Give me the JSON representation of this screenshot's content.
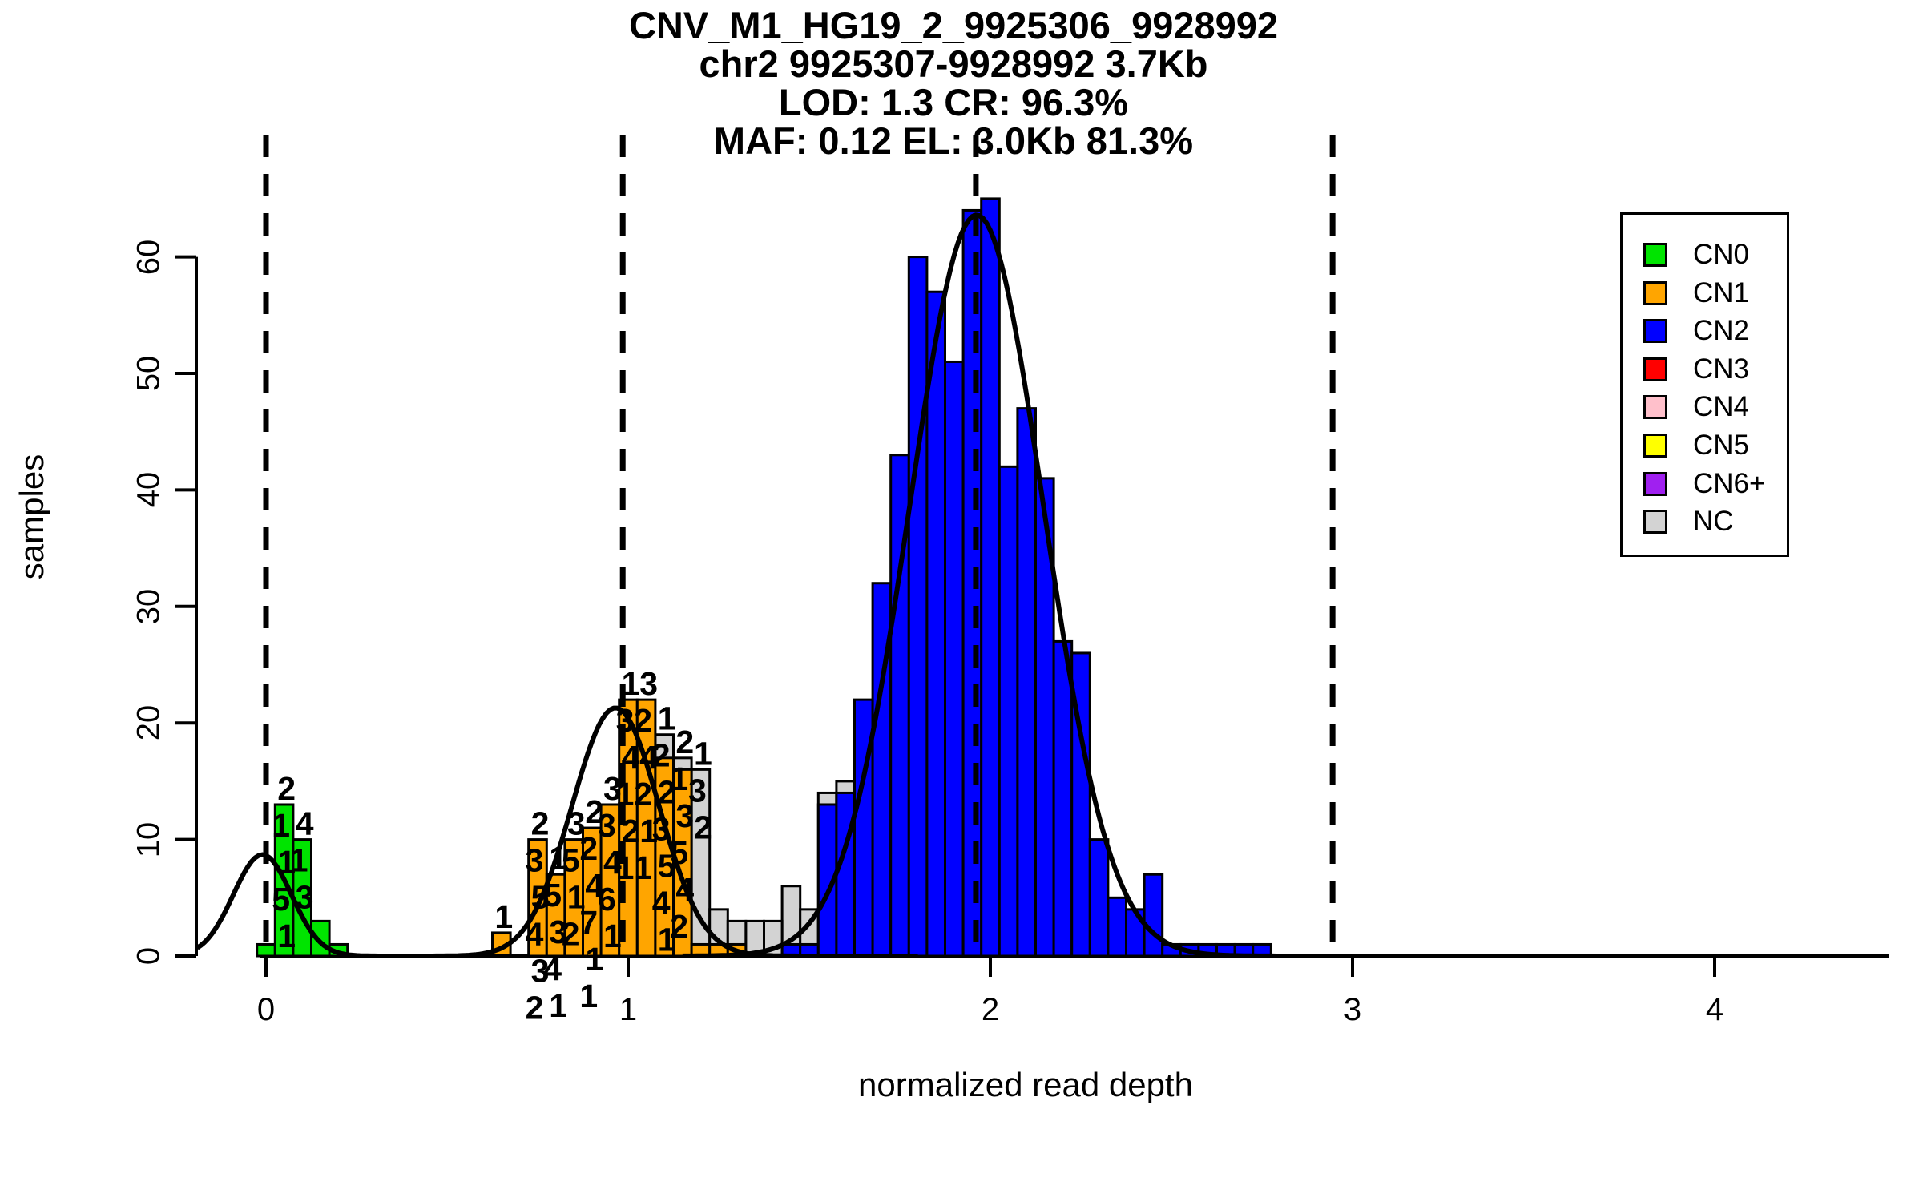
{
  "title": {
    "line1": "CNV_M1_HG19_2_9925306_9928992",
    "line2": "chr2 9925307-9928992 3.7Kb",
    "line3": "LOD: 1.3 CR: 96.3%",
    "line4": "MAF: 0.12 EL: 3.0Kb 81.3%"
  },
  "axes": {
    "xlabel": "normalized read depth",
    "ylabel": "samples",
    "x_ticks": [
      0,
      1,
      2,
      3,
      4
    ],
    "y_ticks": [
      0,
      10,
      20,
      30,
      40,
      50,
      60
    ]
  },
  "legend": {
    "items": [
      {
        "label": "CN0",
        "color": "#00E400"
      },
      {
        "label": "CN1",
        "color": "#FFA500"
      },
      {
        "label": "CN2",
        "color": "#0000FF"
      },
      {
        "label": "CN3",
        "color": "#FF0000"
      },
      {
        "label": "CN4",
        "color": "#FFC0CB"
      },
      {
        "label": "CN5",
        "color": "#FFFF00"
      },
      {
        "label": "CN6+",
        "color": "#A020F0"
      },
      {
        "label": "NC",
        "color": "#D3D3D3"
      }
    ]
  },
  "chart_data": {
    "type": "histogram+density",
    "title": "CNV_M1_HG19_2_9925306_9928992",
    "xlabel": "normalized read depth",
    "ylabel": "samples",
    "xlim": [
      -0.2,
      4.47
    ],
    "ylim": [
      0,
      65
    ],
    "bin_width": 0.05,
    "grid": false,
    "nc_color": "#D3D3D3",
    "bar_border": "#000000",
    "curve_color": "#000000",
    "dashed_lines_x": [
      0,
      0.985,
      1.96,
      2.945
    ],
    "bars": [
      {
        "x": 0.0,
        "h": 1,
        "cn": "CN0"
      },
      {
        "x": 0.05,
        "h": 13,
        "cn": "CN0",
        "labels": [
          "2",
          "1",
          "1",
          "5",
          "1"
        ]
      },
      {
        "x": 0.1,
        "h": 10,
        "cn": "CN0",
        "labels": [
          "4",
          "1",
          "3"
        ]
      },
      {
        "x": 0.15,
        "h": 3,
        "cn": "CN0"
      },
      {
        "x": 0.2,
        "h": 1,
        "cn": "CN0"
      },
      {
        "x": 0.65,
        "h": 2,
        "cn": "CN1",
        "labels": [
          "1"
        ]
      },
      {
        "x": 0.75,
        "h": 10,
        "cn": "CN1",
        "labels": [
          "2",
          "3",
          "5",
          "4",
          "3",
          "2"
        ]
      },
      {
        "x": 0.8,
        "h": 7,
        "cn": "CN1",
        "labels": [
          "1",
          "5",
          "3",
          "4",
          "1"
        ]
      },
      {
        "x": 0.85,
        "h": 10,
        "cn": "CN1",
        "labels": [
          "3",
          "5",
          "1",
          "2"
        ]
      },
      {
        "x": 0.9,
        "h": 11,
        "cn": "CN1",
        "labels": [
          "2",
          "2",
          "4",
          "7",
          "1",
          "1"
        ]
      },
      {
        "x": 0.95,
        "h": 13,
        "cn": "CN1",
        "labels": [
          "3",
          "3",
          "4",
          "6",
          "1"
        ]
      },
      {
        "x": 1.0,
        "h": 22,
        "cn": "CN1",
        "labels": [
          "1",
          "3",
          "4",
          "1",
          "2",
          "1"
        ]
      },
      {
        "x": 1.05,
        "h": 22,
        "cn": "CN1",
        "labels": [
          "3",
          "2",
          "4",
          "2",
          "1",
          "1"
        ]
      },
      {
        "x": 1.1,
        "h": 17,
        "back_h": 19,
        "cn": "CN1",
        "labels": [
          "1",
          "2",
          "2",
          "3",
          "5",
          "4",
          "1"
        ]
      },
      {
        "x": 1.15,
        "h": 16,
        "back_h": 17,
        "cn": "CN1",
        "labels": [
          "2",
          "1",
          "3",
          "5",
          "4",
          "2"
        ]
      },
      {
        "x": 1.2,
        "h": 1,
        "back_h": 16,
        "cn": "CN1",
        "labels": [
          "1",
          "3",
          "2"
        ]
      },
      {
        "x": 1.25,
        "h": 1,
        "back_h": 4,
        "cn": "CN1"
      },
      {
        "x": 1.3,
        "h": 1,
        "back_h": 3,
        "cn": "CN1"
      },
      {
        "x": 1.35,
        "h": 3,
        "cn": "NC"
      },
      {
        "x": 1.4,
        "h": 3,
        "cn": "NC"
      },
      {
        "x": 1.45,
        "h": 1,
        "back_h": 6,
        "cn": "CN2"
      },
      {
        "x": 1.5,
        "h": 1,
        "back_h": 4,
        "cn": "CN2"
      },
      {
        "x": 1.55,
        "h": 13,
        "back_h": 14,
        "cn": "CN2"
      },
      {
        "x": 1.6,
        "h": 14,
        "back_h": 15,
        "cn": "CN2"
      },
      {
        "x": 1.65,
        "h": 22,
        "cn": "CN2"
      },
      {
        "x": 1.7,
        "h": 32,
        "cn": "CN2"
      },
      {
        "x": 1.75,
        "h": 43,
        "cn": "CN2"
      },
      {
        "x": 1.8,
        "h": 60,
        "cn": "CN2"
      },
      {
        "x": 1.85,
        "h": 57,
        "cn": "CN2"
      },
      {
        "x": 1.9,
        "h": 51,
        "cn": "CN2"
      },
      {
        "x": 1.95,
        "h": 64,
        "cn": "CN2"
      },
      {
        "x": 2.0,
        "h": 65,
        "cn": "CN2"
      },
      {
        "x": 2.05,
        "h": 42,
        "cn": "CN2"
      },
      {
        "x": 2.1,
        "h": 47,
        "cn": "CN2"
      },
      {
        "x": 2.15,
        "h": 41,
        "cn": "CN2"
      },
      {
        "x": 2.2,
        "h": 27,
        "cn": "CN2"
      },
      {
        "x": 2.25,
        "h": 26,
        "cn": "CN2"
      },
      {
        "x": 2.3,
        "h": 10,
        "cn": "CN2"
      },
      {
        "x": 2.35,
        "h": 5,
        "cn": "CN2"
      },
      {
        "x": 2.4,
        "h": 4,
        "cn": "CN2"
      },
      {
        "x": 2.45,
        "h": 7,
        "cn": "CN2"
      },
      {
        "x": 2.5,
        "h": 1,
        "cn": "CN2"
      },
      {
        "x": 2.55,
        "h": 1,
        "cn": "CN2"
      },
      {
        "x": 2.6,
        "h": 1,
        "cn": "CN2"
      },
      {
        "x": 2.65,
        "h": 1,
        "cn": "CN2"
      },
      {
        "x": 2.7,
        "h": 1,
        "cn": "CN2"
      },
      {
        "x": 2.75,
        "h": 1,
        "cn": "CN2"
      }
    ],
    "curves": [
      {
        "cn": "CN0",
        "amp": 8.7,
        "mu": -0.01,
        "sigma": 0.08,
        "from": -0.19,
        "to": 0.72
      },
      {
        "cn": "CN1",
        "amp": 21.3,
        "mu": 0.965,
        "sigma": 0.12,
        "from": 0.3,
        "to": 1.8
      },
      {
        "cn": "CN2",
        "amp": 63.6,
        "mu": 1.962,
        "sigma": 0.185,
        "from": 1.15,
        "to": 4.48
      }
    ]
  }
}
